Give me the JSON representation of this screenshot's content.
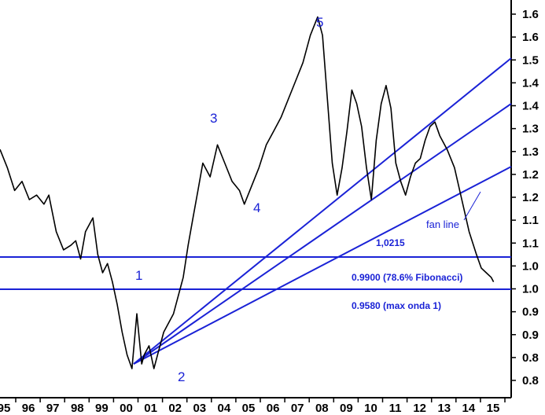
{
  "chart_data": {
    "type": "line",
    "title": "",
    "xlabel": "",
    "ylabel": "",
    "x_ticks": [
      "95",
      "96",
      "97",
      "98",
      "99",
      "00",
      "01",
      "02",
      "03",
      "04",
      "05",
      "06",
      "07",
      "08",
      "09",
      "10",
      "11",
      "12",
      "13",
      "14",
      "15"
    ],
    "y_ticks": [
      "0.8",
      "0.8",
      "0.9",
      "0.9",
      "1.0",
      "1.0",
      "1.1",
      "1.1",
      "1.2",
      "1.2",
      "1.3",
      "1.3",
      "1.4",
      "1.4",
      "1.5",
      "1.6",
      "1.6"
    ],
    "ylim": [
      0.78,
      1.62
    ],
    "grid": false,
    "series": [
      {
        "x": [
          1995.0,
          1995.3,
          1995.6,
          1995.9,
          1996.2,
          1996.5,
          1996.8,
          1997.0,
          1997.3,
          1997.6,
          1997.9,
          1998.1,
          1998.3,
          1998.5,
          1998.8,
          1999.0,
          1999.2,
          1999.4,
          1999.6,
          1999.8,
          2000.0,
          2000.2,
          2000.4,
          2000.6,
          2000.8,
          2000.9,
          2001.1,
          2001.3,
          2001.5,
          2001.7,
          2001.9,
          2002.1,
          2002.3,
          2002.5,
          2002.7,
          2002.9,
          2003.1,
          2003.3,
          2003.6,
          2003.9,
          2004.2,
          2004.5,
          2004.8,
          2005.0,
          2005.3,
          2005.6,
          2005.9,
          2006.2,
          2006.5,
          2006.8,
          2007.1,
          2007.4,
          2007.7,
          2008.0,
          2008.2,
          2008.4,
          2008.6,
          2008.8,
          2009.0,
          2009.2,
          2009.4,
          2009.6,
          2009.8,
          2010.0,
          2010.2,
          2010.4,
          2010.6,
          2010.8,
          2011.0,
          2011.2,
          2011.4,
          2011.6,
          2011.8,
          2012.0,
          2012.2,
          2012.4,
          2012.6,
          2012.8,
          2013.0,
          2013.3,
          2013.6,
          2013.9,
          2014.2,
          2014.5,
          2014.7,
          2014.9,
          2015.1,
          2015.2
        ],
        "y": [
          1.31,
          1.27,
          1.22,
          1.24,
          1.2,
          1.21,
          1.19,
          1.21,
          1.13,
          1.09,
          1.1,
          1.11,
          1.07,
          1.13,
          1.16,
          1.08,
          1.04,
          1.06,
          1.02,
          0.97,
          0.91,
          0.86,
          0.83,
          0.95,
          0.84,
          0.86,
          0.88,
          0.83,
          0.87,
          0.91,
          0.93,
          0.95,
          0.99,
          1.03,
          1.1,
          1.16,
          1.22,
          1.28,
          1.25,
          1.32,
          1.28,
          1.24,
          1.22,
          1.19,
          1.23,
          1.27,
          1.32,
          1.35,
          1.38,
          1.42,
          1.46,
          1.5,
          1.56,
          1.6,
          1.56,
          1.42,
          1.28,
          1.21,
          1.27,
          1.35,
          1.44,
          1.41,
          1.36,
          1.27,
          1.2,
          1.33,
          1.41,
          1.45,
          1.4,
          1.28,
          1.24,
          1.21,
          1.25,
          1.28,
          1.29,
          1.33,
          1.36,
          1.37,
          1.34,
          1.31,
          1.27,
          1.2,
          1.13,
          1.08,
          1.05,
          1.04,
          1.03,
          1.02
        ]
      }
    ],
    "wave_labels": [
      "1",
      "2",
      "3",
      "4",
      "5"
    ],
    "annotations": {
      "level1": "1,0215",
      "level2": "0.9900 (78.6%  Fibonacci)",
      "level3": "0.9580 (max onda 1)",
      "fan_line": "fan line"
    }
  },
  "colors": {
    "price": "#000000",
    "lines": "#1a22d6",
    "labels": "#1a22d6"
  }
}
